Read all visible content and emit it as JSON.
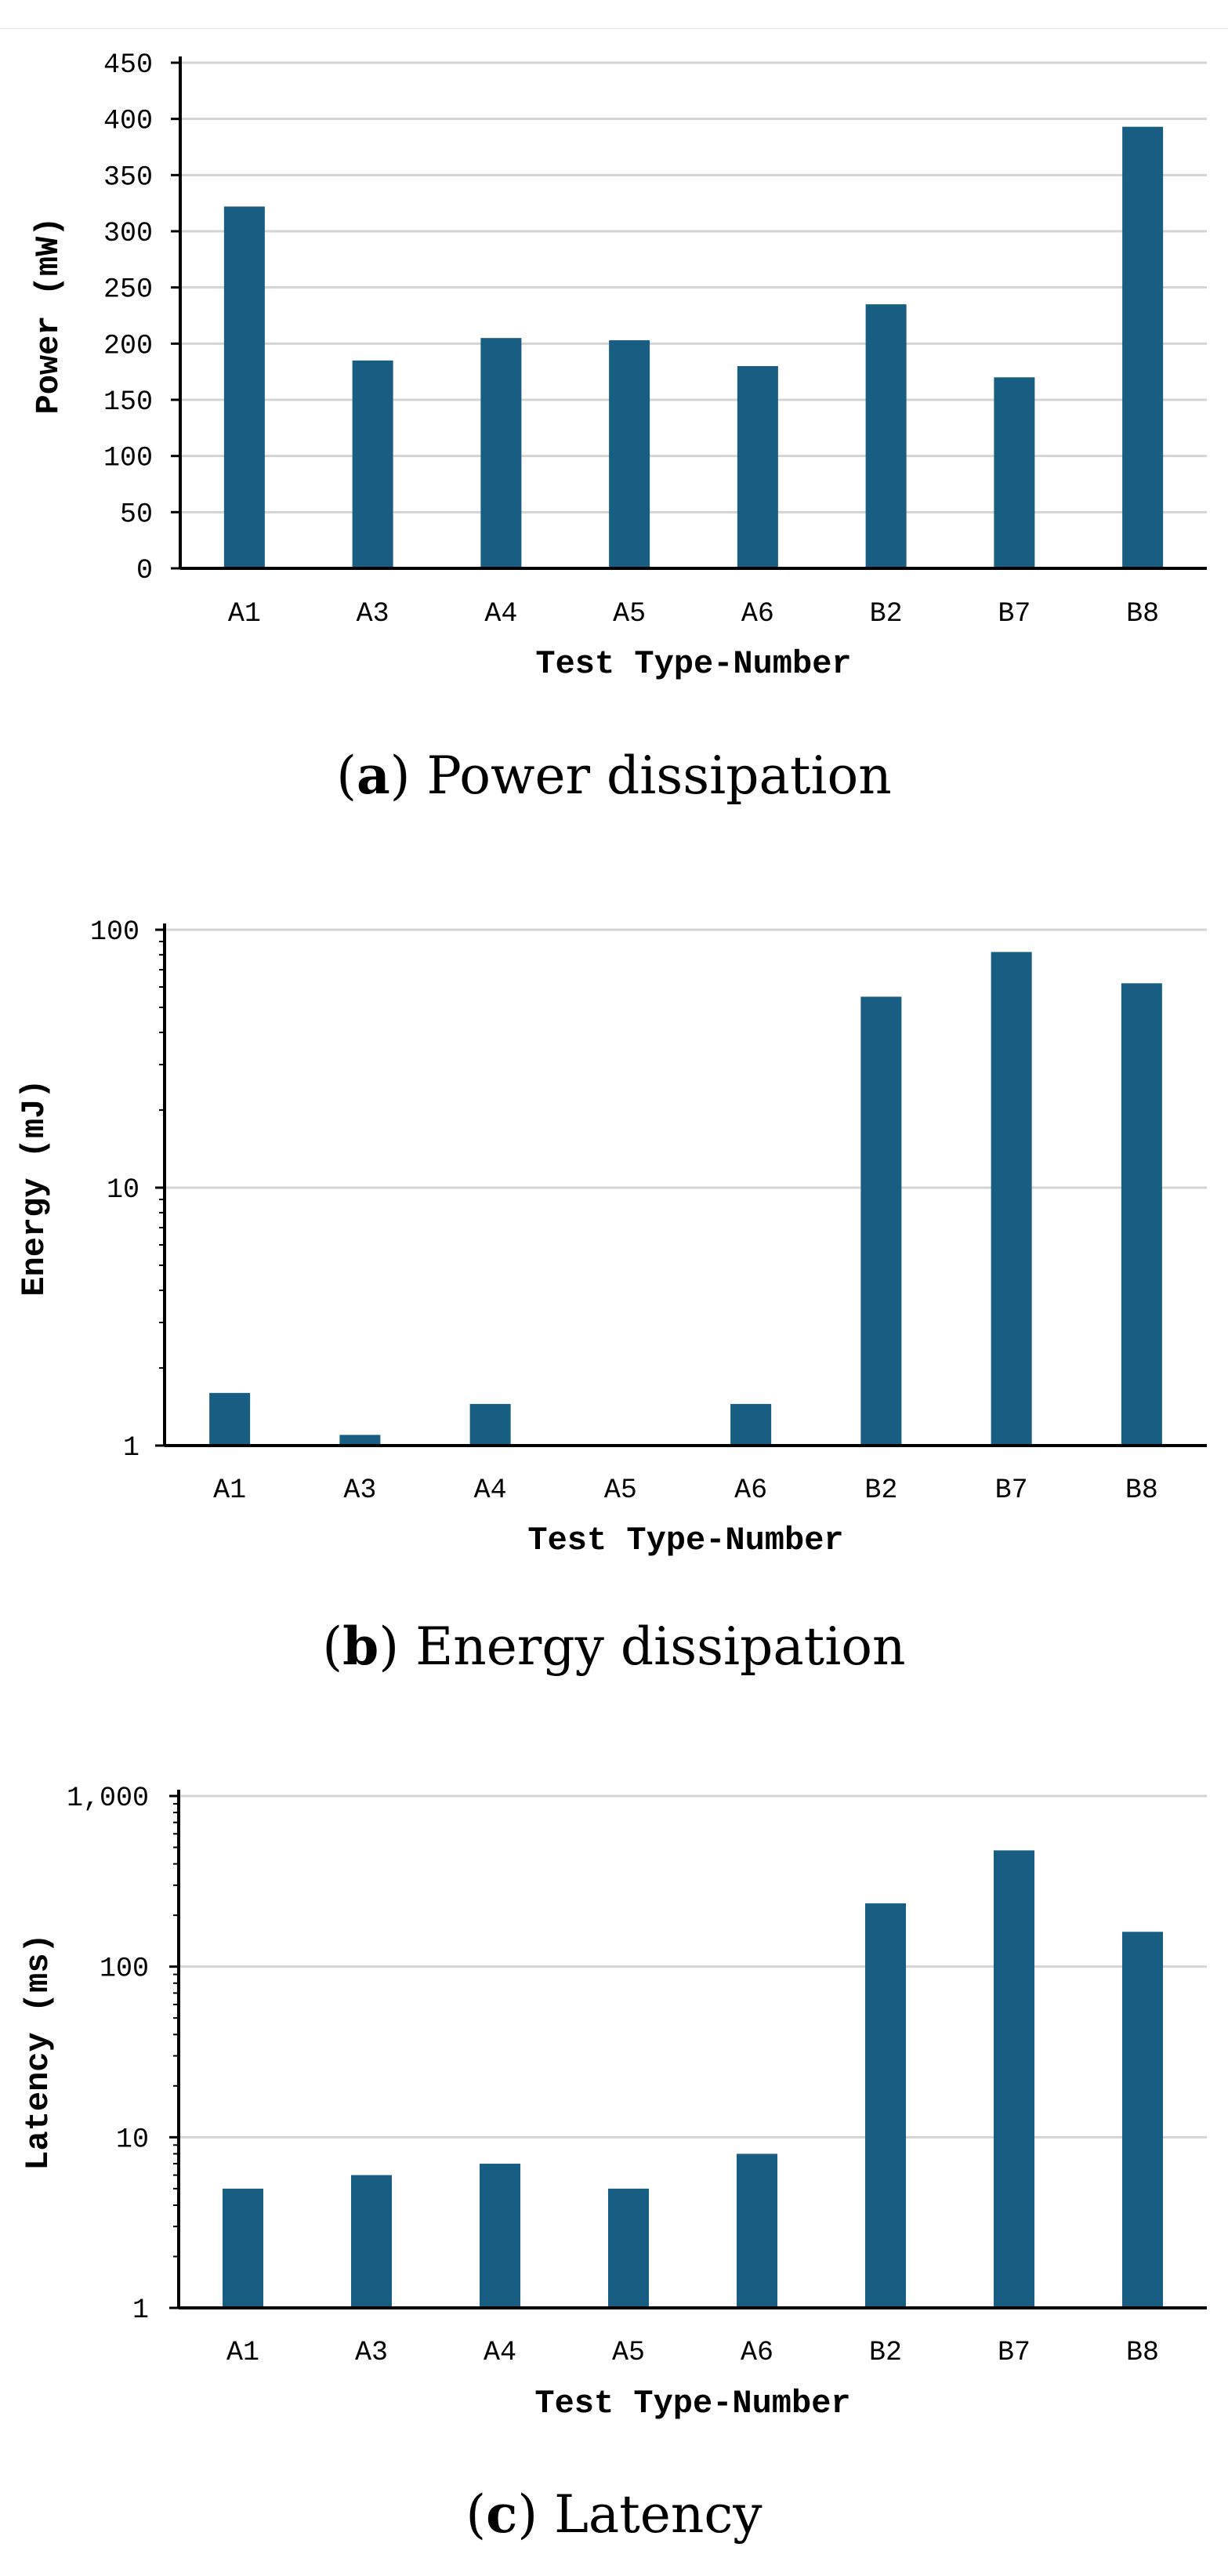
{
  "colors": {
    "bar": "#175E82",
    "grid": "#d4d4d4",
    "axis": "#000000"
  },
  "captions": [
    {
      "letter": "a",
      "text": "Power dissipation"
    },
    {
      "letter": "b",
      "text": "Energy dissipation"
    },
    {
      "letter": "c",
      "text": "Latency"
    }
  ],
  "chart_data": [
    {
      "type": "bar",
      "scale": "linear",
      "categories": [
        "A1",
        "A3",
        "A4",
        "A5",
        "A6",
        "B2",
        "B7",
        "B8"
      ],
      "values": [
        322,
        185,
        205,
        203,
        180,
        235,
        170,
        393
      ],
      "ylim": [
        0,
        450
      ],
      "yticks": [
        0,
        50,
        100,
        150,
        200,
        250,
        300,
        350,
        400,
        450
      ],
      "ytick_labels": [
        "0",
        "50",
        "100",
        "150",
        "200",
        "250",
        "300",
        "350",
        "400",
        "450"
      ],
      "xlabel": "Test Type-Number",
      "ylabel": "Power (mW)",
      "grid": true,
      "legend": "none"
    },
    {
      "type": "bar",
      "scale": "log",
      "categories": [
        "A1",
        "A3",
        "A4",
        "A5",
        "A6",
        "B2",
        "B7",
        "B8"
      ],
      "values": [
        1.6,
        1.1,
        1.45,
        1.0,
        1.45,
        55,
        82,
        62
      ],
      "ylim": [
        1,
        100
      ],
      "yticks": [
        1,
        10,
        100
      ],
      "ytick_labels": [
        "1",
        "10",
        "100"
      ],
      "xlabel": "Test Type-Number",
      "ylabel": "Energy (mJ)",
      "grid": true,
      "legend": "none"
    },
    {
      "type": "bar",
      "scale": "log",
      "categories": [
        "A1",
        "A3",
        "A4",
        "A5",
        "A6",
        "B2",
        "B7",
        "B8"
      ],
      "values": [
        5,
        6,
        7,
        5,
        8,
        235,
        480,
        160
      ],
      "ylim": [
        1,
        1000
      ],
      "yticks": [
        1,
        10,
        100,
        1000
      ],
      "ytick_labels": [
        "1",
        "10",
        "100",
        "1,000"
      ],
      "xlabel": "Test Type-Number",
      "ylabel": "Latency (ms)",
      "grid": true,
      "legend": "none"
    }
  ]
}
